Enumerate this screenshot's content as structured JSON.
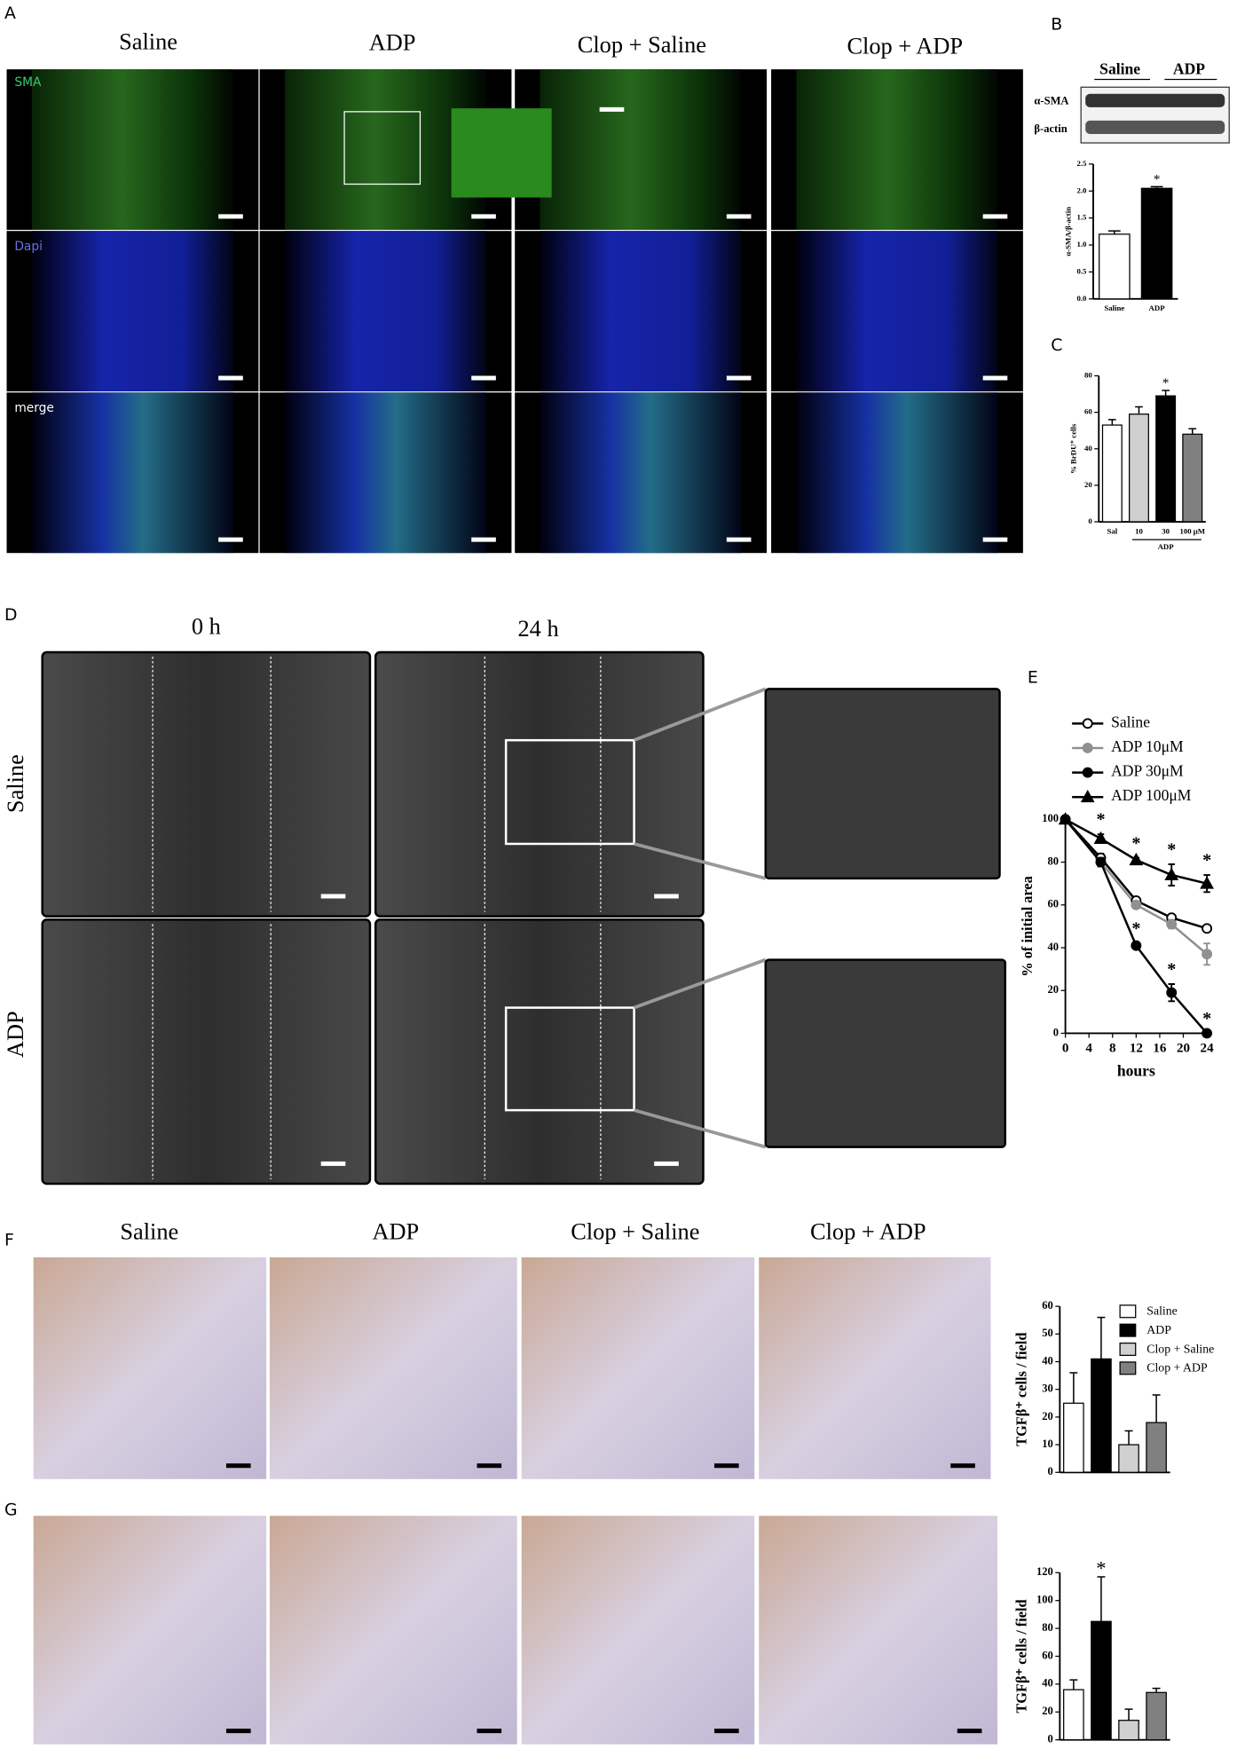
{
  "figure": {
    "panel_labels": [
      "A",
      "B",
      "C",
      "D",
      "E",
      "F",
      "G"
    ],
    "a": {
      "columns": [
        "Saline",
        "ADP",
        "Clop + Saline",
        "Clop + ADP"
      ],
      "rows": [
        "SMA",
        "Dapi",
        "merge"
      ]
    },
    "b": {
      "blot_groups": [
        "Saline",
        "ADP"
      ],
      "blot_rows": [
        "α-SMA",
        "β-actin"
      ]
    },
    "d": {
      "columns": [
        "0 h",
        "24 h"
      ],
      "rows": [
        "Saline",
        "ADP"
      ]
    },
    "f": {
      "columns": [
        "Saline",
        "ADP",
        "Clop + Saline",
        "Clop + ADP"
      ]
    }
  },
  "chart_data": [
    {
      "type": "bar",
      "categories": [
        "Saline",
        "ADP"
      ],
      "values": [
        1.2,
        2.05
      ],
      "errors": [
        0.06,
        0.03
      ],
      "colors": [
        "#ffffff",
        "#000000"
      ],
      "ylim": [
        0,
        2.5
      ],
      "yticks": [
        {
          "value": 0,
          "label": "0.0"
        },
        0.5,
        {
          "value": 1,
          "label": "1.0"
        },
        1.5,
        {
          "value": 2,
          "label": "2.0"
        },
        2.5
      ],
      "ylabel": "α-SMA/β-actin",
      "annotations": [
        {
          "text": "*",
          "index": 1
        }
      ]
    },
    {
      "type": "bar",
      "categories": [
        "Sal",
        "10",
        "30",
        "100 μM"
      ],
      "values": [
        53,
        59,
        69,
        48
      ],
      "errors": [
        3,
        4,
        3,
        3
      ],
      "colors": [
        "#ffffff",
        "#d0d0d0",
        "#000000",
        "#808080"
      ],
      "ylim": [
        0,
        80
      ],
      "yticks": [
        0,
        20,
        40,
        60,
        80
      ],
      "ylabel": "% BrDU⁺ cells",
      "group_label": "ADP",
      "annotations": [
        {
          "text": "*",
          "index": 2
        }
      ]
    },
    {
      "type": "line",
      "x": [
        0,
        6,
        12,
        18,
        24
      ],
      "xlim": [
        0,
        24
      ],
      "xticks": [
        0,
        4,
        8,
        12,
        16,
        20,
        24
      ],
      "ylim": [
        0,
        100
      ],
      "yticks": [
        0,
        20,
        40,
        60,
        80,
        100
      ],
      "xlabel": "hours",
      "ylabel": "% of initial area",
      "legend": "top",
      "series": [
        {
          "name": "Saline",
          "color": "#000000",
          "marker": "circle",
          "marker_fill": "#ffffff",
          "values": [
            100,
            82,
            62,
            54,
            49
          ],
          "errors": [
            0,
            2,
            1,
            1,
            1
          ]
        },
        {
          "name": "ADP 10μM",
          "color": "#909090",
          "marker": "circle",
          "marker_fill": "#909090",
          "values": [
            100,
            80,
            60,
            51,
            37
          ],
          "errors": [
            0,
            2,
            1,
            2,
            5
          ]
        },
        {
          "name": "ADP 30μM",
          "color": "#000000",
          "marker": "circle",
          "marker_fill": "#000000",
          "values": [
            100,
            80,
            41,
            19,
            0
          ],
          "errors": [
            0,
            2,
            1,
            4,
            0
          ]
        },
        {
          "name": "ADP 100μM",
          "color": "#000000",
          "marker": "triangle",
          "marker_fill": "#000000",
          "values": [
            100,
            91,
            81,
            74,
            70
          ],
          "errors": [
            0,
            2,
            1,
            5,
            4
          ]
        }
      ],
      "annotations": [
        {
          "text": "*",
          "series": 3,
          "index": 1
        },
        {
          "text": "*",
          "series": 3,
          "index": 2
        },
        {
          "text": "*",
          "series": 3,
          "index": 3
        },
        {
          "text": "*",
          "series": 3,
          "index": 4
        },
        {
          "text": "*",
          "series": 2,
          "index": 2
        },
        {
          "text": "*",
          "series": 2,
          "index": 3
        },
        {
          "text": "*",
          "series": 2,
          "index": 4
        }
      ]
    },
    {
      "type": "bar",
      "categories": [
        null
      ],
      "ylim": [
        0,
        60
      ],
      "yticks": [
        0,
        10,
        20,
        30,
        40,
        50,
        60
      ],
      "ylabel": "TGFβ⁺ cells / field",
      "legend": "upper right",
      "series": [
        {
          "name": "Saline",
          "color": "#ffffff",
          "values": [
            25
          ],
          "errors": [
            11
          ]
        },
        {
          "name": "ADP",
          "color": "#000000",
          "values": [
            41
          ],
          "errors": [
            15
          ]
        },
        {
          "name": "Clop + Saline",
          "color": "#d0d0d0",
          "values": [
            10
          ],
          "errors": [
            5
          ]
        },
        {
          "name": "Clop + ADP",
          "color": "#808080",
          "values": [
            18
          ],
          "errors": [
            10
          ]
        }
      ]
    },
    {
      "type": "bar",
      "categories": [
        null,
        null,
        null,
        null
      ],
      "values": [
        36,
        85,
        14,
        34
      ],
      "errors": [
        7,
        32,
        8,
        3
      ],
      "colors": [
        "#ffffff",
        "#000000",
        "#d0d0d0",
        "#808080"
      ],
      "ylim": [
        0,
        120
      ],
      "yticks": [
        0,
        20,
        40,
        60,
        80,
        100,
        120
      ],
      "ylabel": "TGFβ⁺ cells / field",
      "annotations": [
        {
          "text": "*",
          "index": 1
        }
      ]
    }
  ]
}
